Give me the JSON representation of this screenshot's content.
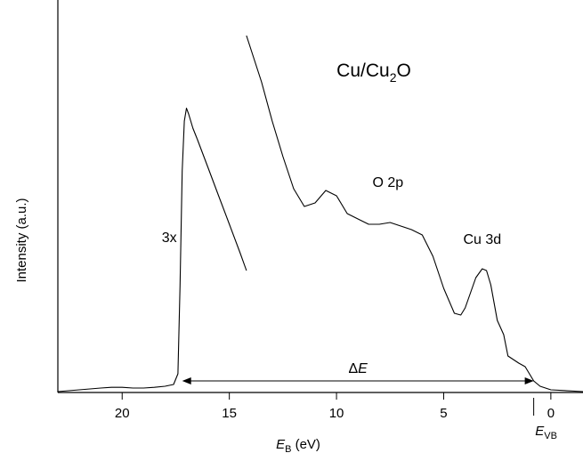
{
  "chart_data": {
    "type": "line",
    "title": "Cu/Cu2O",
    "title_parts": {
      "main": "Cu/Cu",
      "sub": "2",
      "tail": "O"
    },
    "xlabel_parts": {
      "main": "E",
      "sub": "B",
      "tail": " (eV)"
    },
    "ylabel": "Intensity (a.u.)",
    "x_reversed": true,
    "xlim": [
      23,
      -1.5
    ],
    "ylim": [
      0,
      1
    ],
    "y_ticks_shown": false,
    "grid": false,
    "x_ticks": [
      {
        "value": 20,
        "label": "20"
      },
      {
        "value": 15,
        "label": "15"
      },
      {
        "value": 10,
        "label": "10"
      },
      {
        "value": 5,
        "label": "5"
      },
      {
        "value": 0,
        "label": "0"
      }
    ],
    "series": [
      {
        "role": "main-spectrum",
        "x": [
          23,
          22,
          21,
          20.5,
          20,
          19.5,
          19,
          18.5,
          18,
          17.6,
          17.4,
          17.3,
          17.2,
          17.1,
          17.0,
          16.9,
          16.8,
          16.7,
          16.5
        ],
        "y": [
          0.0,
          0.005,
          0.01,
          0.012,
          0.012,
          0.01,
          0.01,
          0.012,
          0.015,
          0.02,
          0.05,
          0.3,
          0.62,
          0.76,
          0.796,
          0.78,
          0.76,
          0.74,
          0.71
        ]
      },
      {
        "role": "main-spectrum-3x",
        "x": [
          16.5,
          16,
          15.5,
          15,
          14.5,
          14.2
        ],
        "y": [
          0.71,
          0.63,
          0.55,
          0.47,
          0.39,
          0.34
        ]
      },
      {
        "role": "main-spectrum-3x",
        "x": [
          14.2,
          13.5,
          13,
          12.5,
          12,
          11.5,
          11,
          10.5,
          10,
          9.5,
          9,
          8.5,
          8,
          7.5,
          7,
          6.5,
          6,
          5.5,
          5,
          4.5,
          4.2,
          4,
          3.5,
          3.2,
          3,
          2.8,
          2.5,
          2.2,
          2,
          1.5,
          1.2,
          1,
          0.8,
          0.5,
          0,
          -1.5
        ],
        "y": [
          1.0,
          0.87,
          0.76,
          0.66,
          0.57,
          0.52,
          0.53,
          0.565,
          0.55,
          0.5,
          0.485,
          0.47,
          0.47,
          0.475,
          0.465,
          0.455,
          0.44,
          0.38,
          0.29,
          0.22,
          0.215,
          0.235,
          0.32,
          0.345,
          0.34,
          0.3,
          0.2,
          0.16,
          0.1,
          0.08,
          0.07,
          0.05,
          0.03,
          0.015,
          0.005,
          0.0
        ]
      }
    ],
    "annotations": [
      {
        "text": "O 2p",
        "x": 7.6,
        "y": 0.575
      },
      {
        "text": "Cu 3d",
        "x": 3.2,
        "y": 0.415
      },
      {
        "text": "3x",
        "x": 17.8,
        "y": 0.42
      }
    ],
    "delta_e": {
      "label": "Δ",
      "label_italic": "E",
      "x_start": 17.2,
      "x_end": 0.8,
      "y": 0.03
    },
    "evb_marker": {
      "x": 0.8,
      "label_main": "E",
      "label_sub": "VB"
    }
  }
}
